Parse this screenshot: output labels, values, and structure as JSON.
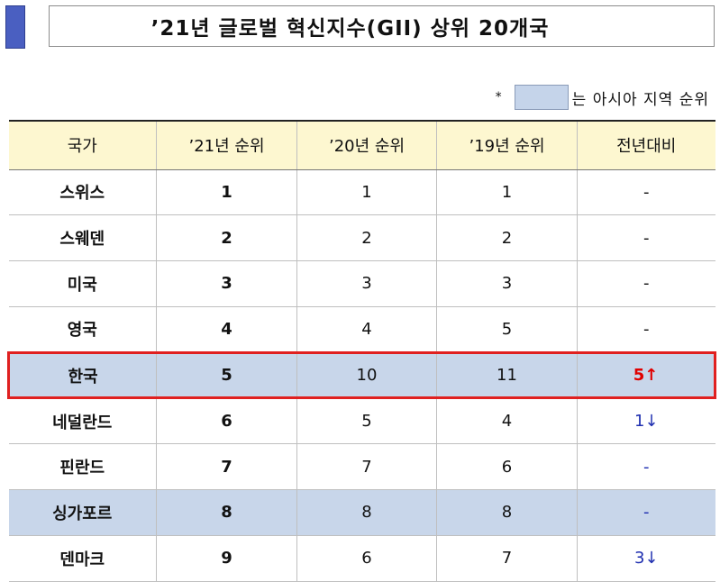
{
  "title": "’21년 글로벌 혁신지수(GII) 상위 20개국",
  "legend": {
    "marker": "*",
    "text": "는 아시아 지역 순위",
    "swatch_color": "#c5d4ea"
  },
  "table": {
    "headers": [
      "국가",
      "’21년 순위",
      "’20년 순위",
      "’19년 순위",
      "전년대비"
    ],
    "rows": [
      {
        "country": "스위스",
        "r21": "1",
        "r20": "1",
        "r19": "1",
        "change": "-",
        "asia": false,
        "highlight": false,
        "trend": "none"
      },
      {
        "country": "스웨덴",
        "r21": "2",
        "r20": "2",
        "r19": "2",
        "change": "-",
        "asia": false,
        "highlight": false,
        "trend": "none"
      },
      {
        "country": "미국",
        "r21": "3",
        "r20": "3",
        "r19": "3",
        "change": "-",
        "asia": false,
        "highlight": false,
        "trend": "none"
      },
      {
        "country": "영국",
        "r21": "4",
        "r20": "4",
        "r19": "5",
        "change": "-",
        "asia": false,
        "highlight": false,
        "trend": "none"
      },
      {
        "country": "한국",
        "r21": "5",
        "r20": "10",
        "r19": "11",
        "change": "5↑",
        "asia": true,
        "highlight": true,
        "trend": "up"
      },
      {
        "country": "네덜란드",
        "r21": "6",
        "r20": "5",
        "r19": "4",
        "change": "1↓",
        "asia": false,
        "highlight": false,
        "trend": "down"
      },
      {
        "country": "핀란드",
        "r21": "7",
        "r20": "7",
        "r19": "6",
        "change": "-",
        "asia": false,
        "highlight": false,
        "trend": "none-blue"
      },
      {
        "country": "싱가포르",
        "r21": "8",
        "r20": "8",
        "r19": "8",
        "change": "-",
        "asia": true,
        "highlight": false,
        "trend": "none-blue"
      },
      {
        "country": "덴마크",
        "r21": "9",
        "r20": "6",
        "r19": "7",
        "change": "3↓",
        "asia": false,
        "highlight": false,
        "trend": "down"
      }
    ]
  },
  "colors": {
    "accent": "#4a5fc1",
    "header_bg": "#fdf7d0",
    "asia_row": "#c8d6ea",
    "highlight_border": "#e02020",
    "up": "#e00000",
    "down": "#1f2fb0"
  }
}
